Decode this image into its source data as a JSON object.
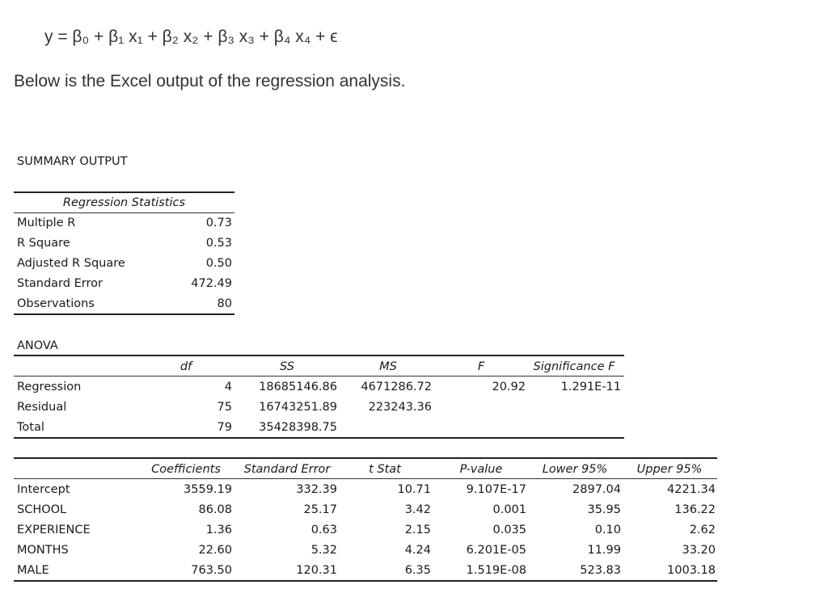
{
  "equation": "y = β₀ + β₁ x₁ + β₂ x₂ + β₃ x₃ + β₄ x₄ + ϵ",
  "intro": "Below is the Excel output of the regression analysis.",
  "summary_title": "SUMMARY OUTPUT",
  "regression_statistics": {
    "header": "Regression Statistics",
    "rows": [
      {
        "label": "Multiple R",
        "value": "0.73"
      },
      {
        "label": "R Square",
        "value": "0.53"
      },
      {
        "label": "Adjusted R Square",
        "value": "0.50"
      },
      {
        "label": "Standard Error",
        "value": "472.49"
      },
      {
        "label": "Observations",
        "value": "80"
      }
    ]
  },
  "anova": {
    "title": "ANOVA",
    "headers": [
      "df",
      "SS",
      "MS",
      "F",
      "Significance F"
    ],
    "rows": [
      {
        "label": "Regression",
        "df": "4",
        "ss": "18685146.86",
        "ms": "4671286.72",
        "f": "20.92",
        "sig": "1.291E-11"
      },
      {
        "label": "Residual",
        "df": "75",
        "ss": "16743251.89",
        "ms": "223243.36",
        "f": "",
        "sig": ""
      },
      {
        "label": "Total",
        "df": "79",
        "ss": "35428398.75",
        "ms": "",
        "f": "",
        "sig": ""
      }
    ]
  },
  "coefficients": {
    "headers": [
      "Coefficients",
      "Standard Error",
      "t Stat",
      "P-value",
      "Lower 95%",
      "Upper 95%"
    ],
    "rows": [
      {
        "label": "Intercept",
        "coef": "3559.19",
        "se": "332.39",
        "t": "10.71",
        "p": "9.107E-17",
        "lo": "2897.04",
        "hi": "4221.34"
      },
      {
        "label": "SCHOOL",
        "coef": "86.08",
        "se": "25.17",
        "t": "3.42",
        "p": "0.001",
        "lo": "35.95",
        "hi": "136.22"
      },
      {
        "label": "EXPERIENCE",
        "coef": "1.36",
        "se": "0.63",
        "t": "2.15",
        "p": "0.035",
        "lo": "0.10",
        "hi": "2.62"
      },
      {
        "label": "MONTHS",
        "coef": "22.60",
        "se": "5.32",
        "t": "4.24",
        "p": "6.201E-05",
        "lo": "11.99",
        "hi": "33.20"
      },
      {
        "label": "MALE",
        "coef": "763.50",
        "se": "120.31",
        "t": "6.35",
        "p": "1.519E-08",
        "lo": "523.83",
        "hi": "1003.18"
      }
    ]
  }
}
